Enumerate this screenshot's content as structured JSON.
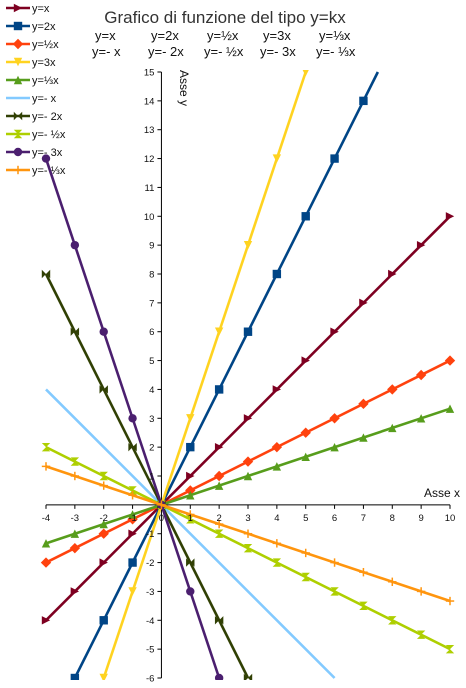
{
  "chart_data": {
    "type": "line",
    "title": "Grafico di funzione del tipo y=kx",
    "subtitle_lines": [
      [
        "y=x",
        "y=2x",
        "y=½x",
        "y=3x",
        "y=⅓x"
      ],
      [
        "y=- x",
        "y=- 2x",
        "y=- ½x",
        "y=- 3x",
        "y=- ⅓x"
      ]
    ],
    "xlabel": "Asse x",
    "ylabel": "Asse y",
    "xlim": [
      -4,
      10
    ],
    "ylim": [
      -6,
      15
    ],
    "x_ticks": [
      -4,
      -3,
      -2,
      -1,
      0,
      1,
      2,
      3,
      4,
      5,
      6,
      7,
      8,
      9,
      10
    ],
    "y_ticks": [
      -6,
      -5,
      -4,
      -3,
      -2,
      -1,
      1,
      2,
      3,
      4,
      5,
      6,
      7,
      8,
      9,
      10,
      11,
      12,
      13,
      14,
      15
    ],
    "grid": false,
    "legend_position": "top-left",
    "x": [
      -4,
      -3,
      -2,
      -1,
      0,
      1,
      2,
      3,
      4,
      5,
      6,
      7,
      8,
      9,
      10
    ],
    "series": [
      {
        "name": "y=x",
        "k": 1,
        "color": "#7e0021",
        "marker": "triangle-right"
      },
      {
        "name": "y=2x",
        "k": 2,
        "color": "#004586",
        "marker": "square"
      },
      {
        "name": "y=½x",
        "k": 0.5,
        "color": "#ff420e",
        "marker": "diamond"
      },
      {
        "name": "y=3x",
        "k": 3,
        "color": "#ffd320",
        "marker": "triangle-down"
      },
      {
        "name": "y=⅓x",
        "k": 0.3333,
        "color": "#579d1c",
        "marker": "triangle-up"
      },
      {
        "name": "y=- x",
        "k": -1,
        "color": "#83caff",
        "marker": "none"
      },
      {
        "name": "y=- 2x",
        "k": -2,
        "color": "#314004",
        "marker": "bowtie"
      },
      {
        "name": "y=- ½x",
        "k": -0.5,
        "color": "#aecf00",
        "marker": "hourglass"
      },
      {
        "name": "y=- 3x",
        "k": -3,
        "color": "#4b1f6f",
        "marker": "circle"
      },
      {
        "name": "y=- ⅓x",
        "k": -0.3333,
        "color": "#ff950e",
        "marker": "star"
      }
    ]
  }
}
